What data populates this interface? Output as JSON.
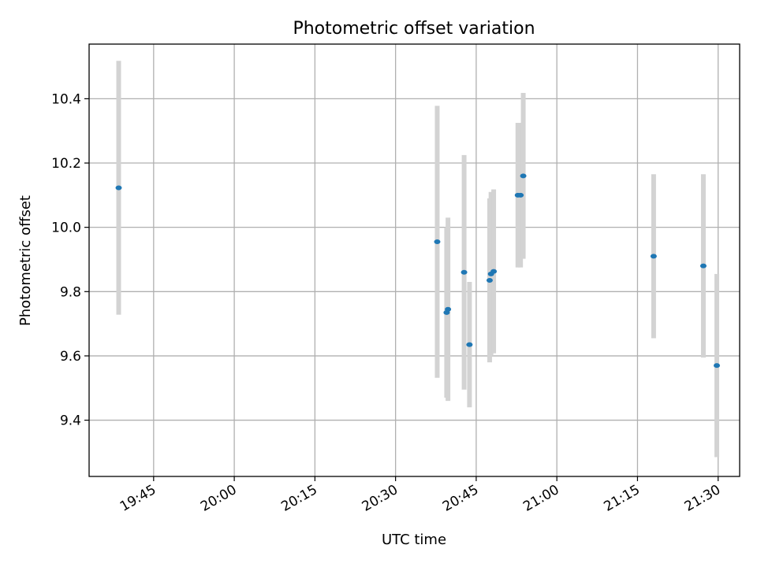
{
  "chart_data": {
    "type": "scatter",
    "title": "Photometric offset variation",
    "xlabel": "UTC time",
    "ylabel": "Photometric offset",
    "grid": true,
    "x_axis": {
      "kind": "time",
      "range": [
        "19:33",
        "21:34"
      ],
      "ticks": [
        "19:45",
        "20:00",
        "20:15",
        "20:30",
        "20:45",
        "21:00",
        "21:15",
        "21:30"
      ]
    },
    "y_axis": {
      "range": [
        9.225,
        10.57
      ],
      "ticks": [
        9.4,
        9.6,
        9.8,
        10.0,
        10.2,
        10.4
      ],
      "tick_labels": [
        "9.4",
        "9.6",
        "9.8",
        "10.0",
        "10.2",
        "10.4"
      ]
    },
    "series": [
      {
        "marker_color": "#1f77b4",
        "errorbar_color": "#d3d3d3",
        "points": [
          {
            "x": "19:38:30",
            "y": 10.123,
            "err": 0.395
          },
          {
            "x": "20:37:45",
            "y": 9.955,
            "err": 0.423
          },
          {
            "x": "20:39:30",
            "y": 9.735,
            "err": 0.265
          },
          {
            "x": "20:39:45",
            "y": 9.745,
            "err": 0.285
          },
          {
            "x": "20:42:45",
            "y": 9.86,
            "err": 0.365
          },
          {
            "x": "20:43:45",
            "y": 9.635,
            "err": 0.195
          },
          {
            "x": "20:47:30",
            "y": 9.835,
            "err": 0.255
          },
          {
            "x": "20:47:45",
            "y": 9.855,
            "err": 0.255
          },
          {
            "x": "20:48:15",
            "y": 9.863,
            "err": 0.255
          },
          {
            "x": "20:52:45",
            "y": 10.1,
            "err": 0.225
          },
          {
            "x": "20:53:15",
            "y": 10.1,
            "err": 0.225
          },
          {
            "x": "20:53:45",
            "y": 10.16,
            "err": 0.258
          },
          {
            "x": "21:18:00",
            "y": 9.91,
            "err": 0.255
          },
          {
            "x": "21:27:15",
            "y": 9.88,
            "err": 0.285
          },
          {
            "x": "21:29:45",
            "y": 9.57,
            "err": 0.285
          }
        ]
      }
    ]
  }
}
